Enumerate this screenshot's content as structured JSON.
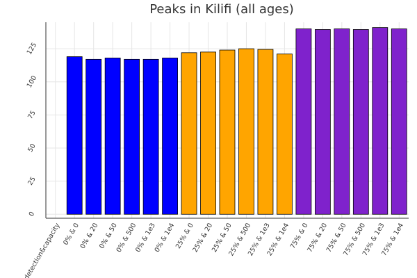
{
  "chart_data": {
    "type": "bar",
    "title": "Peaks in Kilifi (all ages)",
    "xlabel": "",
    "ylabel": "",
    "ylim": [
      -3,
      145
    ],
    "yticks": [
      0,
      25,
      50,
      75,
      100,
      125
    ],
    "grid": true,
    "legend": "none",
    "categories": [
      "detection&capacity",
      "0% & 0",
      "0% & 20",
      "0% & 50",
      "0% & 500",
      "0% & 1e3",
      "0% & 1e4",
      "25% & 0",
      "25% & 20",
      "25% & 50",
      "25% & 500",
      "25% & 1e3",
      "25% & 1e4",
      "75% & 0",
      "75% & 20",
      "75% & 50",
      "75% & 500",
      "75% & 1e3",
      "75% & 1e4"
    ],
    "values": [
      null,
      119,
      117,
      118,
      117,
      117,
      118,
      122,
      122.5,
      124,
      125,
      124.5,
      121,
      140,
      139.5,
      140,
      139.5,
      141,
      140
    ],
    "bar_colors": [
      "",
      "#0000ff",
      "#0000ff",
      "#0000ff",
      "#0000ff",
      "#0000ff",
      "#0000ff",
      "#ffa500",
      "#ffa500",
      "#ffa500",
      "#ffa500",
      "#ffa500",
      "#ffa500",
      "#7f22cc",
      "#7f22cc",
      "#7f22cc",
      "#7f22cc",
      "#7f22cc",
      "#7f22cc"
    ]
  }
}
